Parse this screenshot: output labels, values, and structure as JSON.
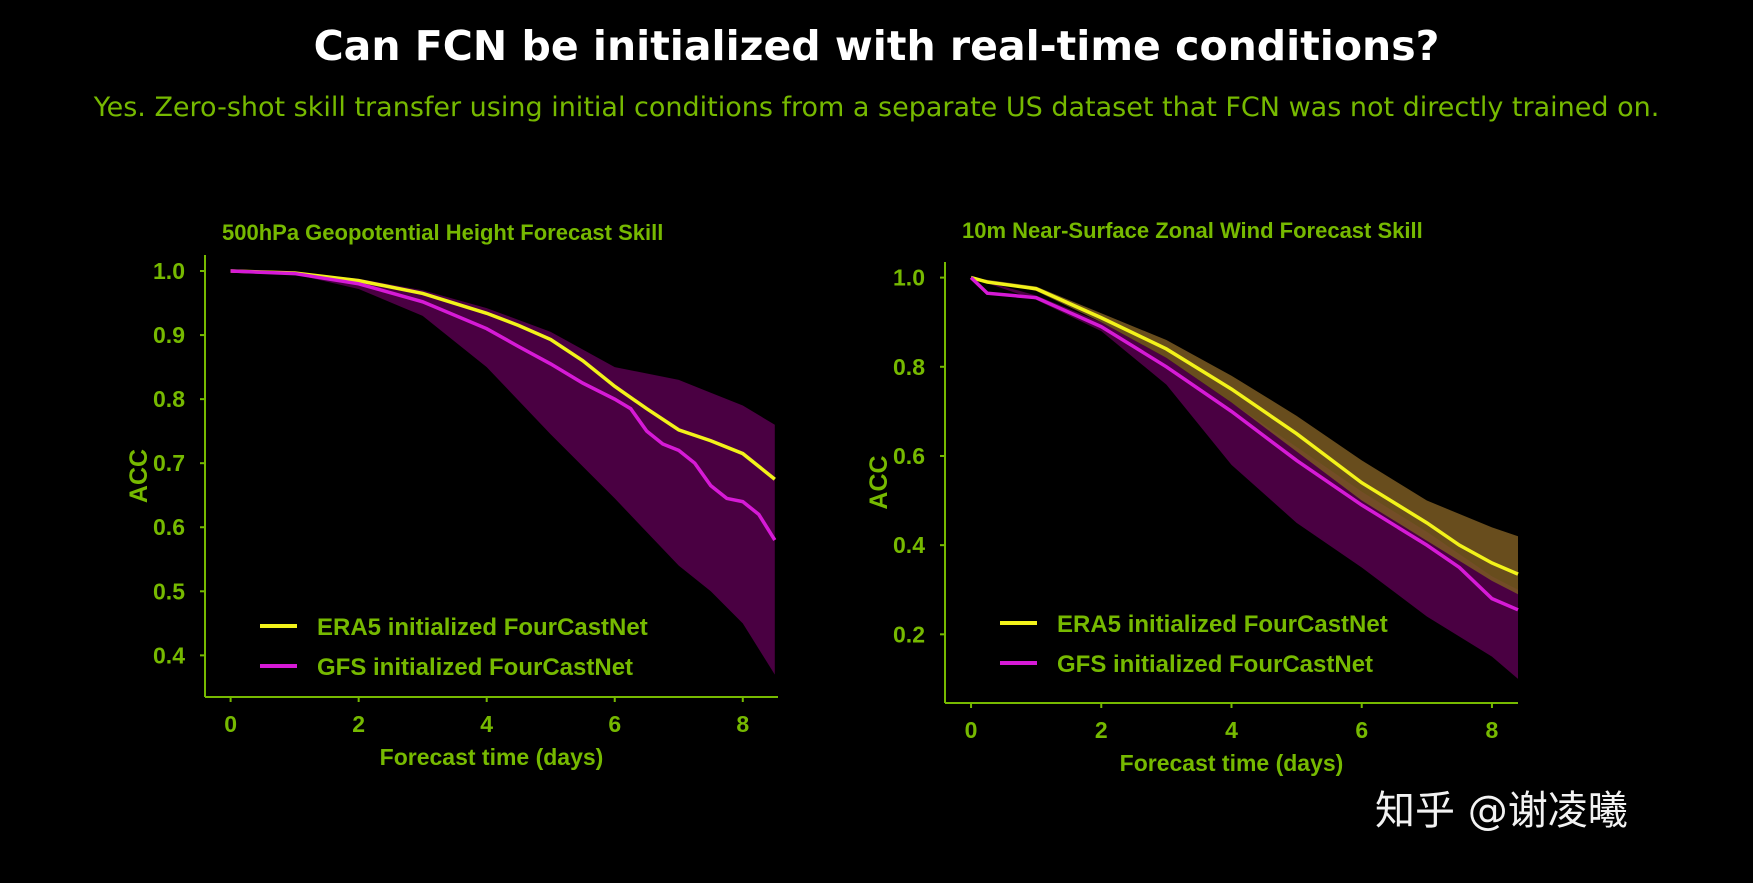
{
  "slide": {
    "title": "Can FCN be initialized with real-time conditions?",
    "subtitle": "Yes. Zero-shot skill transfer using initial conditions from a separate US dataset that FCN was not directly trained on.",
    "watermark": "知乎 @谢凌曦"
  },
  "colors": {
    "axis": "#76b900",
    "era5": "#f2f21a",
    "gfs": "#d61ad6",
    "gfs_band": "#4a0042",
    "era5_band": "#4b4a00",
    "overlap_band": "#7a5a22"
  },
  "chart_data": [
    {
      "type": "line",
      "title": "500hPa Geopotential Height Forecast Skill",
      "xlabel": "Forecast time (days)",
      "ylabel": "ACC",
      "xlim": [
        -0.4,
        8.55
      ],
      "ylim": [
        0.335,
        1.025
      ],
      "xticks": [
        0,
        2,
        4,
        6,
        8
      ],
      "yticks": [
        1.0,
        0.9,
        0.8,
        0.7,
        0.6,
        0.5,
        0.4
      ],
      "ytick_labels": [
        "1.0",
        "0.9",
        "0.8",
        "0.7",
        "0.6",
        "0.5",
        "0.4"
      ],
      "legend": "bottom-left",
      "series": [
        {
          "name": "ERA5 initialized FourCastNet",
          "color": "#f2f21a",
          "x": [
            0,
            1,
            2,
            3,
            4,
            4.5,
            5,
            5.5,
            6,
            6.5,
            7,
            7.5,
            8,
            8.5
          ],
          "y": [
            1.0,
            0.997,
            0.985,
            0.965,
            0.934,
            0.915,
            0.893,
            0.86,
            0.82,
            0.785,
            0.752,
            0.735,
            0.715,
            0.675
          ]
        },
        {
          "name": "GFS initialized FourCastNet",
          "color": "#d61ad6",
          "x": [
            0,
            1,
            2,
            3,
            4,
            4.5,
            5,
            5.5,
            6,
            6.25,
            6.5,
            6.75,
            7,
            7.25,
            7.5,
            7.75,
            8,
            8.25,
            8.5
          ],
          "y": [
            1.0,
            0.996,
            0.98,
            0.952,
            0.91,
            0.882,
            0.855,
            0.825,
            0.8,
            0.785,
            0.75,
            0.73,
            0.72,
            0.7,
            0.665,
            0.645,
            0.64,
            0.62,
            0.58
          ]
        }
      ],
      "bands": [
        {
          "of": "GFS initialized FourCastNet",
          "color": "#4a0042",
          "x": [
            0,
            1,
            2,
            3,
            4,
            5,
            6,
            7,
            7.5,
            8,
            8.5
          ],
          "upper": [
            1.0,
            0.998,
            0.988,
            0.97,
            0.942,
            0.905,
            0.85,
            0.83,
            0.81,
            0.79,
            0.76
          ],
          "lower": [
            1.0,
            0.995,
            0.972,
            0.93,
            0.85,
            0.745,
            0.645,
            0.54,
            0.5,
            0.45,
            0.37
          ]
        }
      ]
    },
    {
      "type": "line",
      "title": "10m Near-Surface Zonal Wind Forecast Skill",
      "xlabel": "Forecast time (days)",
      "ylabel": "ACC",
      "xlim": [
        -0.4,
        8.4
      ],
      "ylim": [
        0.046,
        1.035
      ],
      "xticks": [
        0,
        2,
        4,
        6,
        8
      ],
      "yticks": [
        1.0,
        0.8,
        0.6,
        0.4,
        0.2
      ],
      "ytick_labels": [
        "1.0",
        "0.8",
        "0.6",
        "0.4",
        "0.2"
      ],
      "legend": "bottom-left",
      "series": [
        {
          "name": "ERA5 initialized FourCastNet",
          "color": "#f2f21a",
          "x": [
            0,
            0.25,
            1,
            2,
            3,
            4,
            5,
            6,
            7,
            7.5,
            8,
            8.4
          ],
          "y": [
            1.0,
            0.99,
            0.975,
            0.91,
            0.84,
            0.75,
            0.65,
            0.54,
            0.45,
            0.4,
            0.36,
            0.335
          ]
        },
        {
          "name": "GFS initialized FourCastNet",
          "color": "#d61ad6",
          "x": [
            0,
            0.25,
            1,
            2,
            3,
            4,
            5,
            6,
            7,
            7.5,
            8,
            8.4
          ],
          "y": [
            1.0,
            0.965,
            0.955,
            0.89,
            0.8,
            0.7,
            0.59,
            0.49,
            0.4,
            0.35,
            0.28,
            0.255
          ]
        }
      ],
      "bands": [
        {
          "of": "GFS initialized FourCastNet",
          "color": "#4a0042",
          "x": [
            0,
            1,
            2,
            3,
            4,
            5,
            6,
            7,
            8,
            8.4
          ],
          "upper": [
            1.0,
            0.96,
            0.9,
            0.82,
            0.72,
            0.62,
            0.52,
            0.43,
            0.33,
            0.3
          ],
          "lower": [
            1.0,
            0.95,
            0.88,
            0.76,
            0.58,
            0.45,
            0.35,
            0.24,
            0.15,
            0.1
          ]
        },
        {
          "of": "ERA5 initialized FourCastNet",
          "color": "#7a5a22",
          "x": [
            0,
            1,
            2,
            3,
            4,
            5,
            6,
            7,
            8,
            8.4
          ],
          "upper": [
            1.0,
            0.98,
            0.92,
            0.86,
            0.78,
            0.69,
            0.59,
            0.5,
            0.44,
            0.42
          ],
          "lower": [
            1.0,
            0.97,
            0.9,
            0.82,
            0.72,
            0.61,
            0.5,
            0.41,
            0.32,
            0.29
          ]
        }
      ]
    }
  ]
}
